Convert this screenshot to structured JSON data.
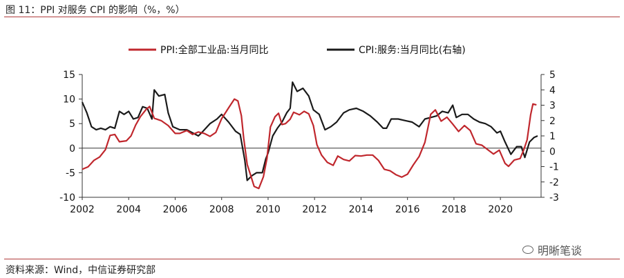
{
  "header": {
    "title": "图 11：PPI 对服务 CPI 的影响（%，%）"
  },
  "footer": {
    "source": "资料来源：Wind，中信证券研究部"
  },
  "watermark": {
    "text": "明晰笔谈"
  },
  "colors": {
    "ppi": "#c0272d",
    "cpi": "#1a1a1a",
    "rule": "#b03a3a"
  },
  "chart_data": {
    "type": "line",
    "x_ticks": [
      "2002",
      "2004",
      "2006",
      "2008",
      "2010",
      "2012",
      "2014",
      "2016",
      "2018",
      "2020"
    ],
    "y_left_ticks": [
      "15",
      "10",
      "5",
      "0",
      "-5",
      "-10"
    ],
    "y_right_ticks": [
      "5",
      "4",
      "3",
      "2",
      "1",
      "0",
      "-1",
      "-2",
      "-3"
    ],
    "ylim_left": [
      -10,
      15
    ],
    "ylim_right": [
      -3,
      5
    ],
    "xlim": [
      2002.0,
      2021.75
    ],
    "legend_position": "top-center",
    "series": [
      {
        "name": "PPI:全部工业品:当月同比",
        "axis": "left",
        "color": "#c0272d",
        "points": [
          [
            2002.0,
            -4.3
          ],
          [
            2002.25,
            -3.8
          ],
          [
            2002.5,
            -2.5
          ],
          [
            2002.75,
            -1.8
          ],
          [
            2003.0,
            -0.3
          ],
          [
            2003.2,
            2.6
          ],
          [
            2003.4,
            2.8
          ],
          [
            2003.6,
            1.3
          ],
          [
            2003.9,
            1.5
          ],
          [
            2004.1,
            2.5
          ],
          [
            2004.3,
            4.7
          ],
          [
            2004.5,
            6.4
          ],
          [
            2004.75,
            7.9
          ],
          [
            2004.9,
            8.5
          ],
          [
            2005.1,
            6.1
          ],
          [
            2005.4,
            5.6
          ],
          [
            2005.7,
            4.6
          ],
          [
            2006.0,
            3.0
          ],
          [
            2006.2,
            3.0
          ],
          [
            2006.5,
            3.6
          ],
          [
            2006.75,
            2.8
          ],
          [
            2007.0,
            3.3
          ],
          [
            2007.25,
            3.0
          ],
          [
            2007.5,
            2.4
          ],
          [
            2007.75,
            3.2
          ],
          [
            2008.0,
            6.0
          ],
          [
            2008.3,
            8.2
          ],
          [
            2008.55,
            10.0
          ],
          [
            2008.7,
            9.6
          ],
          [
            2008.85,
            6.6
          ],
          [
            2008.95,
            2.0
          ],
          [
            2009.1,
            -3.3
          ],
          [
            2009.25,
            -5.5
          ],
          [
            2009.4,
            -7.8
          ],
          [
            2009.6,
            -8.2
          ],
          [
            2009.8,
            -5.8
          ],
          [
            2009.95,
            -2.1
          ],
          [
            2010.1,
            4.3
          ],
          [
            2010.3,
            6.4
          ],
          [
            2010.45,
            7.1
          ],
          [
            2010.6,
            4.8
          ],
          [
            2010.75,
            5.0
          ],
          [
            2010.95,
            5.9
          ],
          [
            2011.1,
            7.3
          ],
          [
            2011.35,
            6.8
          ],
          [
            2011.55,
            7.5
          ],
          [
            2011.75,
            7.0
          ],
          [
            2011.95,
            4.6
          ],
          [
            2012.1,
            0.7
          ],
          [
            2012.3,
            -1.4
          ],
          [
            2012.55,
            -2.9
          ],
          [
            2012.8,
            -3.5
          ],
          [
            2013.0,
            -1.6
          ],
          [
            2013.25,
            -2.3
          ],
          [
            2013.5,
            -2.6
          ],
          [
            2013.75,
            -1.5
          ],
          [
            2014.0,
            -1.6
          ],
          [
            2014.25,
            -1.4
          ],
          [
            2014.5,
            -1.4
          ],
          [
            2014.75,
            -2.5
          ],
          [
            2015.0,
            -4.3
          ],
          [
            2015.25,
            -4.6
          ],
          [
            2015.5,
            -5.4
          ],
          [
            2015.75,
            -5.9
          ],
          [
            2016.0,
            -5.3
          ],
          [
            2016.25,
            -3.4
          ],
          [
            2016.5,
            -1.7
          ],
          [
            2016.75,
            1.2
          ],
          [
            2017.0,
            6.9
          ],
          [
            2017.2,
            7.8
          ],
          [
            2017.45,
            5.5
          ],
          [
            2017.7,
            6.3
          ],
          [
            2017.95,
            4.9
          ],
          [
            2018.2,
            3.4
          ],
          [
            2018.45,
            4.6
          ],
          [
            2018.7,
            3.6
          ],
          [
            2018.95,
            0.9
          ],
          [
            2019.2,
            0.6
          ],
          [
            2019.45,
            -0.3
          ],
          [
            2019.7,
            -1.2
          ],
          [
            2019.95,
            -0.4
          ],
          [
            2020.2,
            -3.1
          ],
          [
            2020.35,
            -3.7
          ],
          [
            2020.6,
            -2.4
          ],
          [
            2020.85,
            -2.1
          ],
          [
            2021.0,
            -0.4
          ],
          [
            2021.15,
            1.7
          ],
          [
            2021.3,
            6.8
          ],
          [
            2021.4,
            9.0
          ],
          [
            2021.55,
            8.8
          ]
        ]
      },
      {
        "name": "CPI:服务:当月同比(右轴)",
        "axis": "right",
        "color": "#1a1a1a",
        "points": [
          [
            2002.0,
            3.2
          ],
          [
            2002.2,
            2.5
          ],
          [
            2002.4,
            1.6
          ],
          [
            2002.6,
            1.4
          ],
          [
            2002.8,
            1.5
          ],
          [
            2003.0,
            1.4
          ],
          [
            2003.2,
            1.6
          ],
          [
            2003.4,
            1.5
          ],
          [
            2003.6,
            2.6
          ],
          [
            2003.8,
            2.4
          ],
          [
            2004.0,
            2.6
          ],
          [
            2004.2,
            2.1
          ],
          [
            2004.4,
            2.2
          ],
          [
            2004.6,
            2.9
          ],
          [
            2004.8,
            2.8
          ],
          [
            2005.0,
            2.1
          ],
          [
            2005.1,
            4.0
          ],
          [
            2005.3,
            3.6
          ],
          [
            2005.55,
            3.7
          ],
          [
            2005.7,
            2.5
          ],
          [
            2005.9,
            1.6
          ],
          [
            2006.2,
            1.4
          ],
          [
            2006.5,
            1.4
          ],
          [
            2006.75,
            1.2
          ],
          [
            2007.0,
            1.0
          ],
          [
            2007.2,
            1.3
          ],
          [
            2007.5,
            1.8
          ],
          [
            2007.8,
            2.1
          ],
          [
            2008.0,
            2.4
          ],
          [
            2008.3,
            1.9
          ],
          [
            2008.6,
            1.3
          ],
          [
            2008.8,
            1.1
          ],
          [
            2009.0,
            -0.6
          ],
          [
            2009.1,
            -1.9
          ],
          [
            2009.3,
            -1.6
          ],
          [
            2009.5,
            -1.4
          ],
          [
            2009.75,
            -1.4
          ],
          [
            2009.9,
            -0.5
          ],
          [
            2010.0,
            -0.1
          ],
          [
            2010.2,
            1.0
          ],
          [
            2010.4,
            1.5
          ],
          [
            2010.6,
            1.9
          ],
          [
            2010.8,
            2.5
          ],
          [
            2010.95,
            2.8
          ],
          [
            2011.05,
            4.5
          ],
          [
            2011.25,
            3.9
          ],
          [
            2011.5,
            4.1
          ],
          [
            2011.75,
            3.6
          ],
          [
            2011.95,
            2.7
          ],
          [
            2012.2,
            2.4
          ],
          [
            2012.45,
            1.4
          ],
          [
            2012.7,
            1.6
          ],
          [
            2012.95,
            1.9
          ],
          [
            2013.25,
            2.5
          ],
          [
            2013.5,
            2.7
          ],
          [
            2013.8,
            2.8
          ],
          [
            2014.1,
            2.6
          ],
          [
            2014.4,
            2.3
          ],
          [
            2014.7,
            1.9
          ],
          [
            2014.95,
            1.5
          ],
          [
            2015.1,
            1.5
          ],
          [
            2015.3,
            2.1
          ],
          [
            2015.6,
            2.1
          ],
          [
            2015.9,
            2.0
          ],
          [
            2016.2,
            1.9
          ],
          [
            2016.5,
            1.6
          ],
          [
            2016.75,
            2.1
          ],
          [
            2017.0,
            2.2
          ],
          [
            2017.25,
            2.3
          ],
          [
            2017.5,
            2.6
          ],
          [
            2017.75,
            2.5
          ],
          [
            2017.95,
            3.0
          ],
          [
            2018.1,
            2.2
          ],
          [
            2018.35,
            2.4
          ],
          [
            2018.6,
            2.4
          ],
          [
            2018.85,
            2.1
          ],
          [
            2019.1,
            1.9
          ],
          [
            2019.35,
            1.8
          ],
          [
            2019.6,
            1.6
          ],
          [
            2019.85,
            1.2
          ],
          [
            2020.0,
            1.3
          ],
          [
            2020.2,
            0.6
          ],
          [
            2020.45,
            -0.2
          ],
          [
            2020.7,
            0.3
          ],
          [
            2020.9,
            0.3
          ],
          [
            2021.05,
            -0.4
          ],
          [
            2021.25,
            0.6
          ],
          [
            2021.45,
            0.9
          ],
          [
            2021.6,
            1.0
          ]
        ]
      }
    ]
  }
}
